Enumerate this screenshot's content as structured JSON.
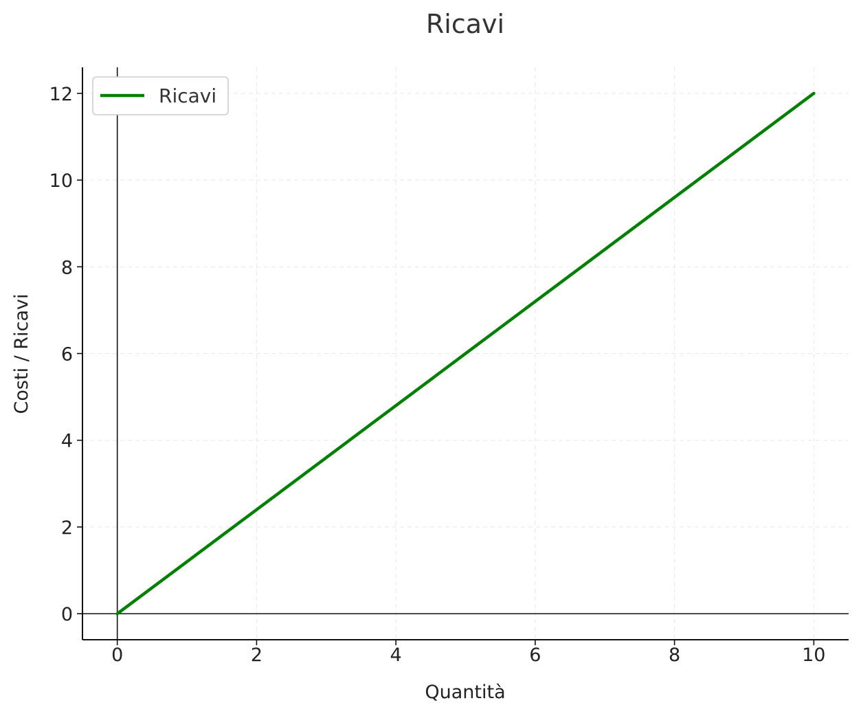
{
  "chart_data": {
    "type": "line",
    "title": "Ricavi",
    "xlabel": "Quantità",
    "ylabel": "Costi / Ricavi",
    "xlim": [
      -0.5,
      10.5
    ],
    "ylim": [
      -0.6,
      12.6
    ],
    "xticks": [
      0,
      2,
      4,
      6,
      8,
      10
    ],
    "yticks": [
      0,
      2,
      4,
      6,
      8,
      10,
      12
    ],
    "grid": true,
    "legend_position": "top-left",
    "series": [
      {
        "name": "Ricavi",
        "color": "#008000",
        "x": [
          0,
          10
        ],
        "y": [
          0,
          12
        ]
      }
    ]
  }
}
